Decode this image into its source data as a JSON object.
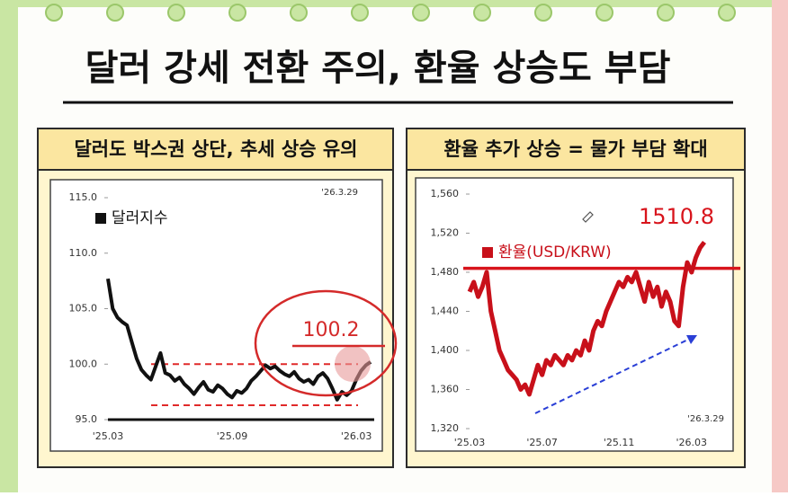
{
  "title": "달러 강세 전환 주의, 환율 상승도 부담",
  "chart_data": [
    {
      "type": "line",
      "title": "달러도 박스권 상단, 추세 상승 유의",
      "date": "'26.3.29",
      "annotation": "100.2",
      "categories": [
        "'25.03",
        null,
        null,
        null,
        null,
        null,
        null,
        null,
        null,
        null,
        null,
        null,
        null,
        null,
        null,
        null,
        null,
        null,
        null,
        null,
        null,
        null,
        null,
        null,
        null,
        null,
        "'25.09",
        null,
        null,
        null,
        null,
        null,
        null,
        null,
        null,
        null,
        null,
        null,
        null,
        null,
        null,
        null,
        null,
        null,
        null,
        null,
        null,
        null,
        null,
        null,
        null,
        null,
        "'26.03",
        null,
        null,
        null
      ],
      "series": [
        {
          "name": "달러지수",
          "color": "#111111",
          "values": [
            107.7,
            105.0,
            104.2,
            103.8,
            103.5,
            102.0,
            100.5,
            99.5,
            99.0,
            98.6,
            99.8,
            101.0,
            99.2,
            99.0,
            98.5,
            98.8,
            98.2,
            97.8,
            97.3,
            97.9,
            98.4,
            97.7,
            97.5,
            98.1,
            97.8,
            97.3,
            97.0,
            97.6,
            97.4,
            97.8,
            98.5,
            98.9,
            99.4,
            99.9,
            99.6,
            99.8,
            99.4,
            99.1,
            98.9,
            99.3,
            98.7,
            98.4,
            98.6,
            98.2,
            98.9,
            99.2,
            98.7,
            97.8,
            96.8,
            97.5,
            97.2,
            97.6,
            98.6,
            99.4,
            99.9,
            100.2
          ]
        }
      ],
      "ylim": [
        95,
        115
      ],
      "yticks": [
        {
          "value": 95,
          "label": "95.0"
        },
        {
          "value": 100,
          "label": "100.0"
        },
        {
          "value": 105,
          "label": "105.0"
        },
        {
          "value": 110,
          "label": "110.0"
        },
        {
          "value": 115,
          "label": "115.0"
        }
      ],
      "reference_lines": [
        100,
        96.3
      ],
      "reference_color": "#e02a2a"
    },
    {
      "type": "line",
      "title": "환율 추가 상승 = 물가 부담 확대",
      "date": "'26.3.29",
      "annotation": "1510.8",
      "categories": [
        "'25.03",
        null,
        null,
        null,
        null,
        null,
        null,
        null,
        null,
        null,
        null,
        null,
        null,
        null,
        null,
        null,
        null,
        "'25.07",
        null,
        null,
        null,
        null,
        null,
        null,
        null,
        null,
        null,
        null,
        null,
        null,
        null,
        null,
        null,
        null,
        null,
        "'25.11",
        null,
        null,
        null,
        null,
        null,
        null,
        null,
        null,
        null,
        null,
        null,
        null,
        null,
        null,
        null,
        null,
        "'26.03",
        null,
        null,
        null
      ],
      "series": [
        {
          "name": "환율(USD/KRW)",
          "color": "#c8101a",
          "values": [
            1460,
            1470,
            1455,
            1465,
            1480,
            1440,
            1420,
            1400,
            1390,
            1380,
            1375,
            1370,
            1360,
            1365,
            1355,
            1370,
            1385,
            1375,
            1390,
            1385,
            1395,
            1390,
            1385,
            1395,
            1390,
            1400,
            1395,
            1410,
            1400,
            1420,
            1430,
            1425,
            1440,
            1450,
            1460,
            1470,
            1465,
            1475,
            1470,
            1480,
            1465,
            1450,
            1470,
            1455,
            1465,
            1445,
            1460,
            1450,
            1430,
            1425,
            1465,
            1490,
            1480,
            1495,
            1505,
            1510.8
          ]
        }
      ],
      "ylim": [
        1320,
        1560
      ],
      "yticks": [
        {
          "value": 1320,
          "label": "1,320"
        },
        {
          "value": 1360,
          "label": "1,360"
        },
        {
          "value": 1400,
          "label": "1,400"
        },
        {
          "value": 1440,
          "label": "1,440"
        },
        {
          "value": 1480,
          "label": "1,480"
        },
        {
          "value": 1520,
          "label": "1,520"
        },
        {
          "value": 1560,
          "label": "1,560"
        }
      ],
      "reference_lines": [
        1484
      ],
      "reference_color": "#d8141c"
    }
  ]
}
